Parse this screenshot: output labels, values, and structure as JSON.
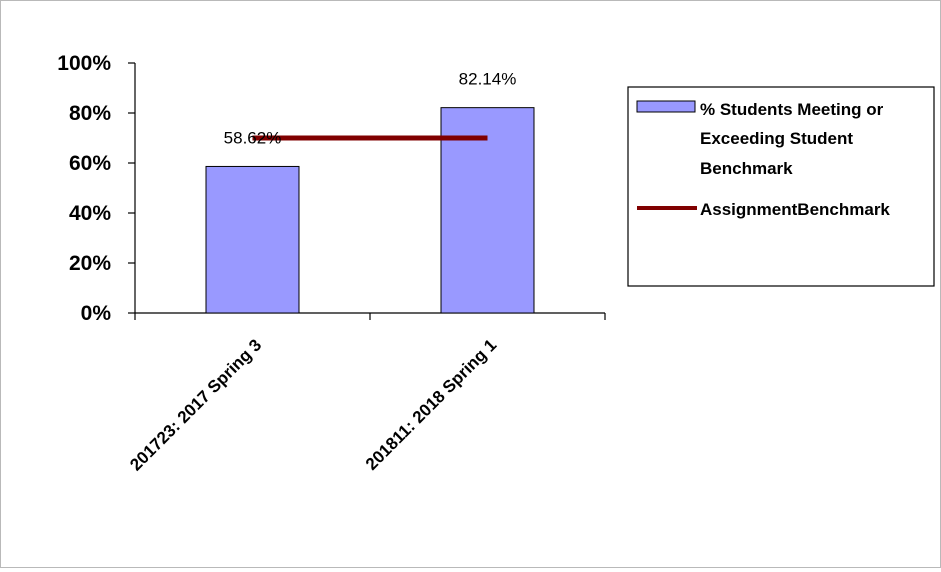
{
  "chart_data": {
    "type": "bar",
    "categories": [
      "201723: 2017 Spring 3",
      "201811: 2018 Spring 1"
    ],
    "series": [
      {
        "name": "% Students Meeting or Exceeding Student Benchmark",
        "kind": "bar",
        "values": [
          58.62,
          82.14
        ],
        "labels": [
          "58.62%",
          "82.14%"
        ],
        "color": "#9999ff"
      },
      {
        "name": "AssignmentBenchmark",
        "kind": "line",
        "values": [
          70,
          70
        ],
        "color": "#800000"
      }
    ],
    "yticks": [
      "0%",
      "20%",
      "40%",
      "60%",
      "80%",
      "100%"
    ],
    "ylim": [
      0,
      100
    ],
    "grid": false,
    "legend_position": "right",
    "legend_lines": [
      [
        "% Students Meeting or",
        "Exceeding Student",
        "Benchmark"
      ],
      [
        "AssignmentBenchmark"
      ]
    ]
  }
}
